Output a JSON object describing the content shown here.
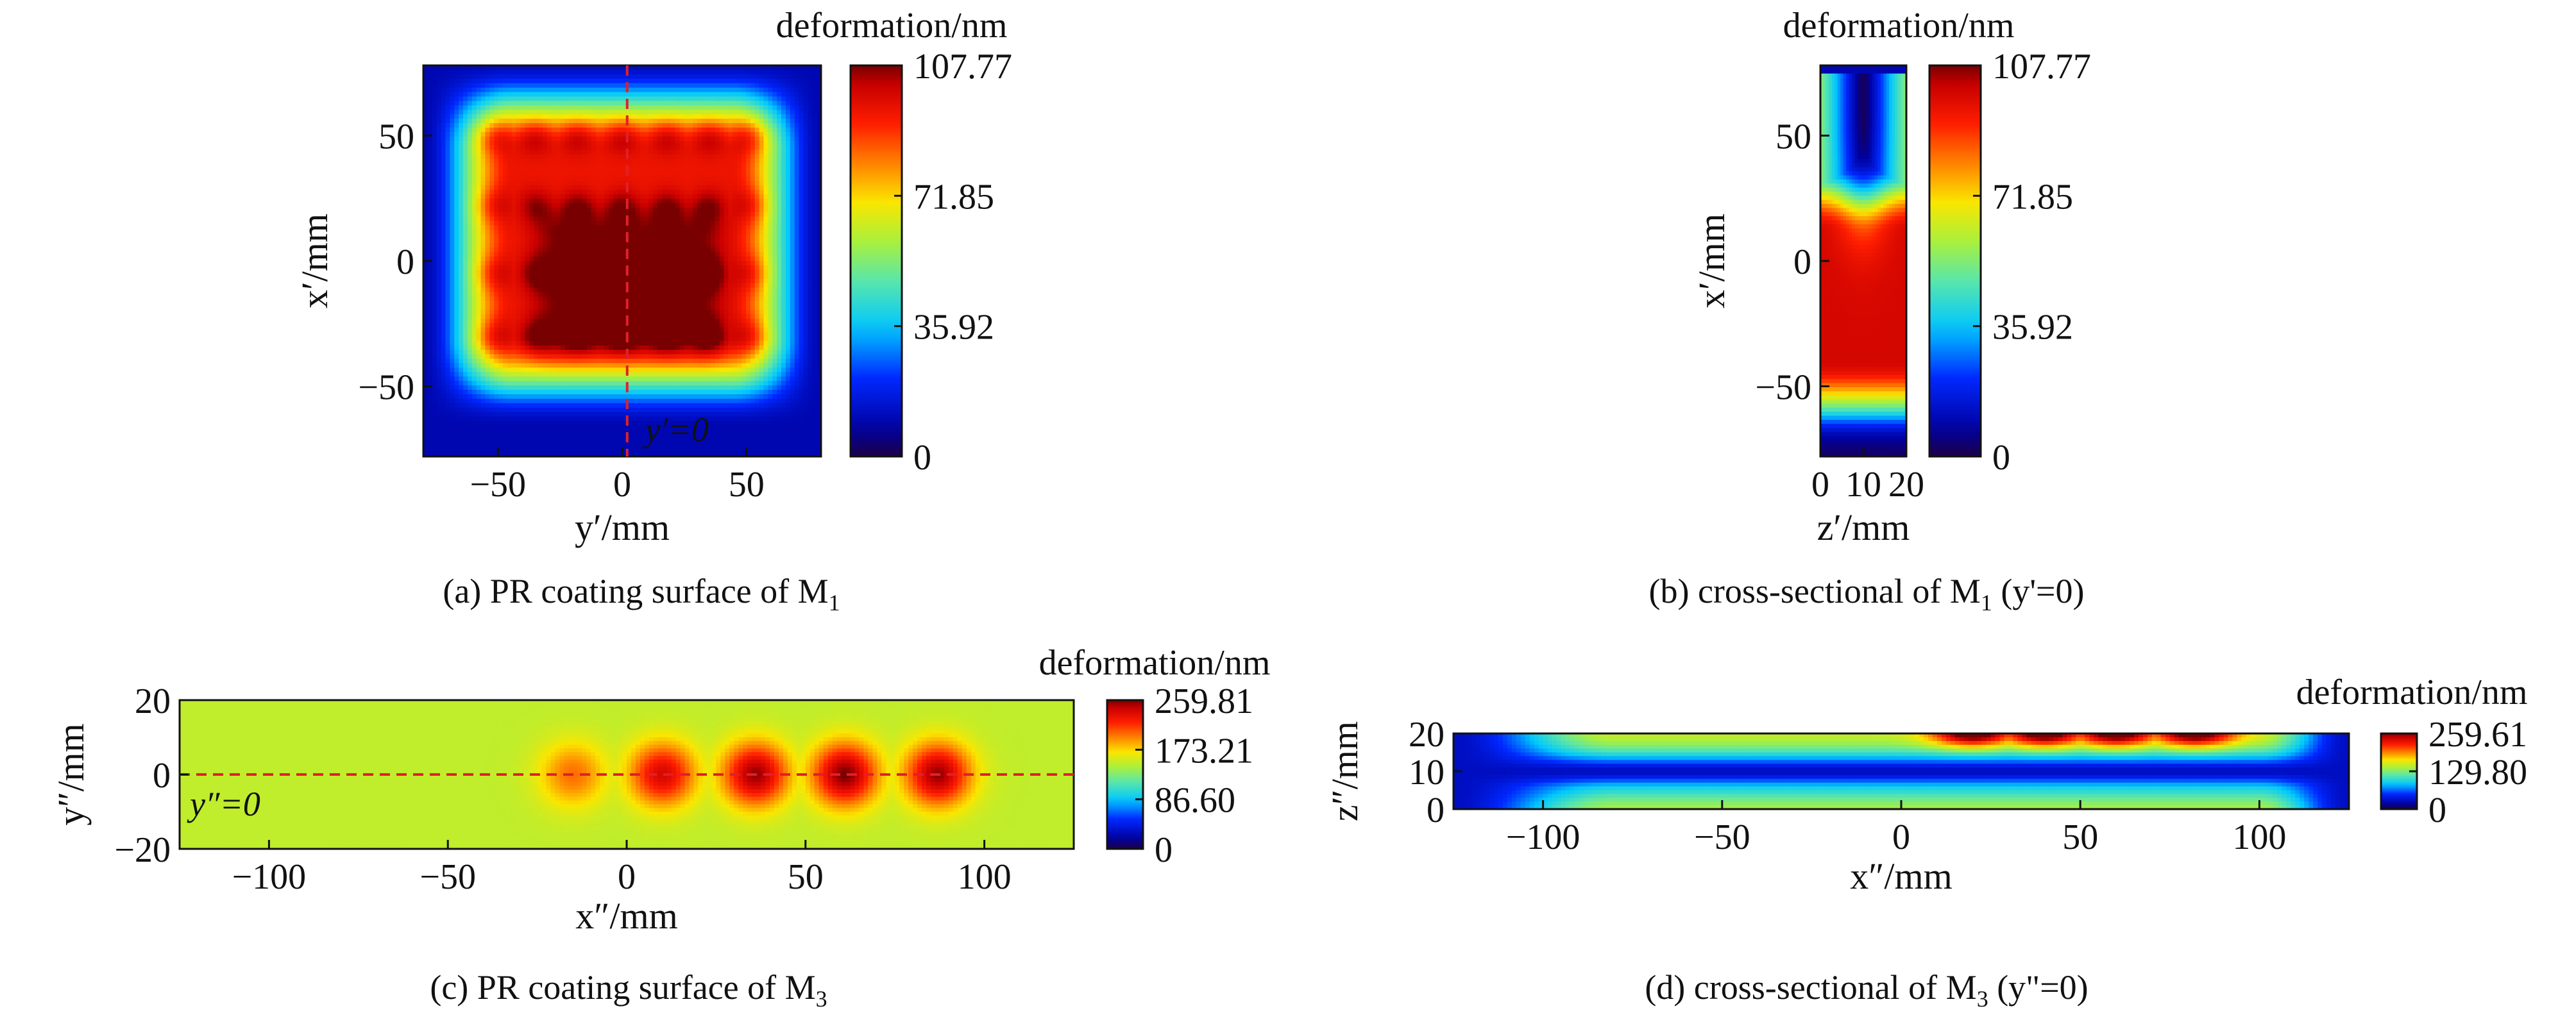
{
  "chart_data": [
    {
      "type": "heatmap",
      "panel": "a",
      "caption": "(a) PR coating surface of M",
      "caption_sub": "1",
      "xlabel": "y′/mm",
      "ylabel": "x′/mm",
      "x_ticks": [
        -50,
        0,
        50
      ],
      "y_ticks": [
        50,
        0,
        -50
      ],
      "xlim": [
        -80,
        80
      ],
      "ylim": [
        -78,
        78
      ],
      "colorbar_title": "deformation/nm",
      "colorbar_ticks": [
        "107.77",
        "71.85",
        "35.92",
        "0"
      ],
      "colorbar_range": [
        0,
        107.77
      ],
      "annotation": "y′=0",
      "annotation_line": {
        "axis": "x",
        "value": 2
      },
      "field": {
        "background": 10,
        "plateau": 95,
        "plateau_extent": {
          "x": [
            -62,
            62
          ],
          "y": [
            -48,
            62
          ]
        },
        "hot_core": {
          "x": [
            -35,
            40
          ],
          "y": [
            -40,
            20
          ],
          "value": 107.77
        },
        "hotspot_rows_y": [
          50,
          22,
          -5,
          -30
        ],
        "hotspot_cols_x": [
          -52,
          -35,
          -18,
          0,
          18,
          35,
          52
        ]
      }
    },
    {
      "type": "heatmap",
      "panel": "b",
      "caption": "(b) cross-sectional of M",
      "caption_sub": "1",
      "caption_tail": " (y'=0)",
      "xlabel": "z′/mm",
      "ylabel": "x′/mm",
      "x_ticks": [
        0,
        10,
        20
      ],
      "y_ticks": [
        50,
        0,
        -50
      ],
      "xlim": [
        0,
        20
      ],
      "ylim": [
        -78,
        78
      ],
      "colorbar_title": "deformation/nm",
      "colorbar_ticks": [
        "107.77",
        "71.85",
        "35.92",
        "0"
      ],
      "colorbar_range": [
        0,
        107.77
      ],
      "field": {
        "hot_band_y": [
          -45,
          15
        ],
        "cold_pocket_top": {
          "z": 10,
          "y": 55,
          "value": 3
        },
        "cold_bottom_y": -72
      }
    },
    {
      "type": "heatmap",
      "panel": "c",
      "caption": "(c) PR coating surface of M",
      "caption_sub": "3",
      "xlabel": "x″/mm",
      "ylabel": "y″/mm",
      "x_ticks": [
        -100,
        -50,
        0,
        50,
        100
      ],
      "y_ticks": [
        20,
        0,
        -20
      ],
      "xlim": [
        -125,
        125
      ],
      "ylim": [
        -20,
        20
      ],
      "colorbar_title": "deformation/nm",
      "colorbar_ticks": [
        "259.81",
        "173.21",
        "86.60",
        "0"
      ],
      "colorbar_range": [
        0,
        259.81
      ],
      "annotation": "y″=0",
      "annotation_line": {
        "axis": "y",
        "value": 0
      },
      "field": {
        "plateau": 150,
        "plateau_extent": {
          "x": [
            -92,
            108
          ],
          "y": [
            -15,
            15
          ]
        },
        "hotspots_x": [
          -15,
          10,
          36,
          61,
          87
        ],
        "hotspots_peak": [
          200,
          240,
          255,
          259.81,
          255
        ]
      }
    },
    {
      "type": "heatmap",
      "panel": "d",
      "caption": "(d) cross-sectional of M",
      "caption_sub": "3",
      "caption_tail": " (y\"=0)",
      "xlabel": "x″/mm",
      "ylabel": "z″/mm",
      "x_ticks": [
        -100,
        -50,
        0,
        50,
        100
      ],
      "y_ticks": [
        20,
        10,
        0
      ],
      "xlim": [
        -125,
        125
      ],
      "ylim": [
        0,
        20
      ],
      "colorbar_title": "deformation/nm",
      "colorbar_ticks": [
        "259.61",
        "129.80",
        "0"
      ],
      "colorbar_range": [
        0,
        259.61
      ],
      "field": {
        "hot_top_x": [
          15,
          90
        ],
        "mid_band_z": 10
      }
    }
  ]
}
